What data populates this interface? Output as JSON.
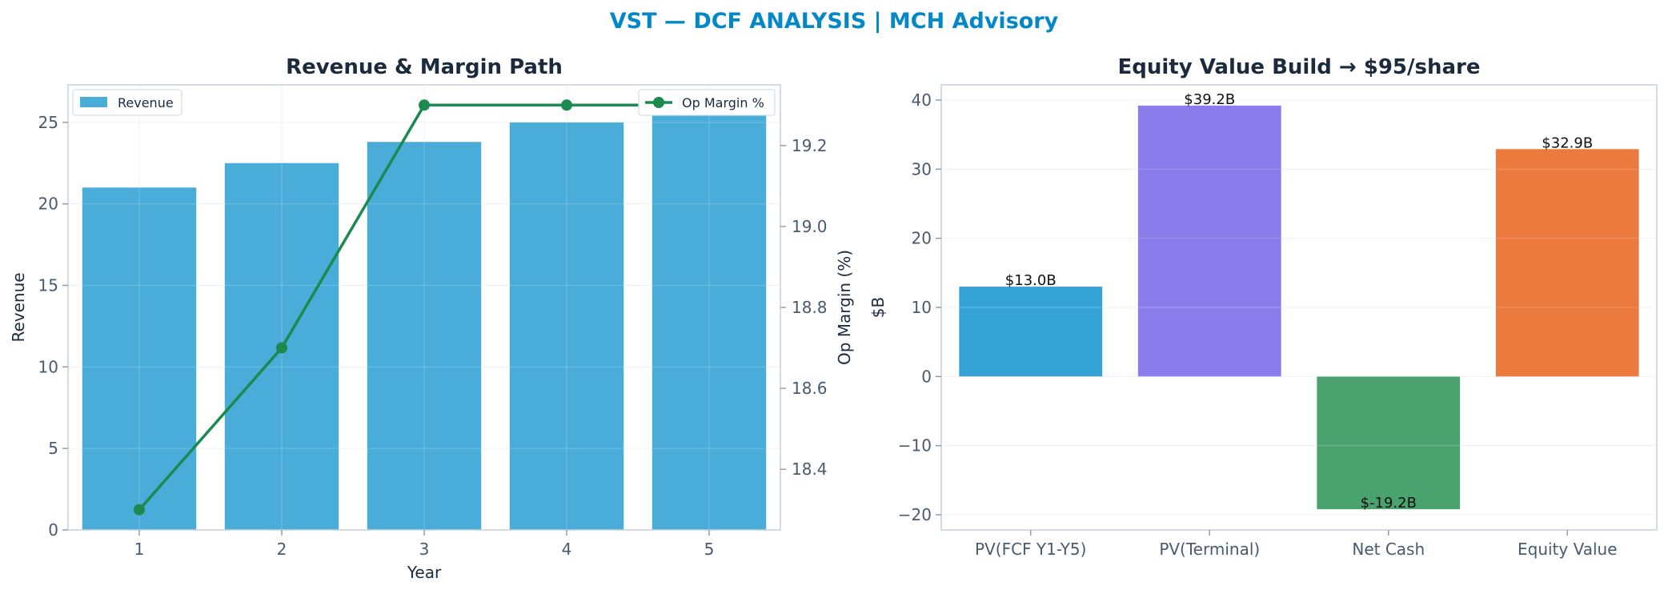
{
  "suptitle": "VST — DCF ANALYSIS | MCH Advisory",
  "colors": {
    "revenue": "#4aacd8",
    "margin_line": "#1a8a4e",
    "pv_fcf": "#34a2d4",
    "pv_terminal": "#8b7cec",
    "net_cash": "#4aa36e",
    "equity_value": "#ec7a3e"
  },
  "chart_data": [
    {
      "type": "bar",
      "title": "Revenue & Margin Path",
      "xlabel": "Year",
      "ylabel": "Revenue",
      "y2label": "Op Margin (%)",
      "categories": [
        "1",
        "2",
        "3",
        "4",
        "5"
      ],
      "series": [
        {
          "name": "Revenue",
          "type": "bar",
          "axis": "left",
          "values": [
            21.0,
            22.5,
            23.8,
            25.0,
            26.2
          ]
        },
        {
          "name": "Op Margin %",
          "type": "line",
          "axis": "right",
          "values": [
            18.3,
            18.7,
            19.3,
            19.3,
            19.3
          ]
        }
      ],
      "ylim": [
        0,
        27.3
      ],
      "y_ticks": [
        0,
        5,
        10,
        15,
        20,
        25
      ],
      "y2lim": [
        18.25,
        19.35
      ],
      "y2_ticks": [
        18.4,
        18.6,
        18.8,
        19.0,
        19.2
      ],
      "grid": true,
      "legend": {
        "revenue": "upper-left",
        "margin": "upper-right"
      }
    },
    {
      "type": "bar",
      "title": "Equity Value Build → $95/share",
      "xlabel": "",
      "ylabel": "$B",
      "categories": [
        "PV(FCF Y1-Y5)",
        "PV(Terminal)",
        "Net Cash",
        "Equity Value"
      ],
      "values": [
        13.0,
        39.2,
        -19.2,
        32.9
      ],
      "data_labels": [
        "$13.0B",
        "$39.2B",
        "$-19.2B",
        "$32.9B"
      ],
      "ylim": [
        -22.2,
        42.2
      ],
      "y_ticks": [
        -20,
        -10,
        0,
        10,
        20,
        30,
        40
      ],
      "grid": true
    }
  ]
}
